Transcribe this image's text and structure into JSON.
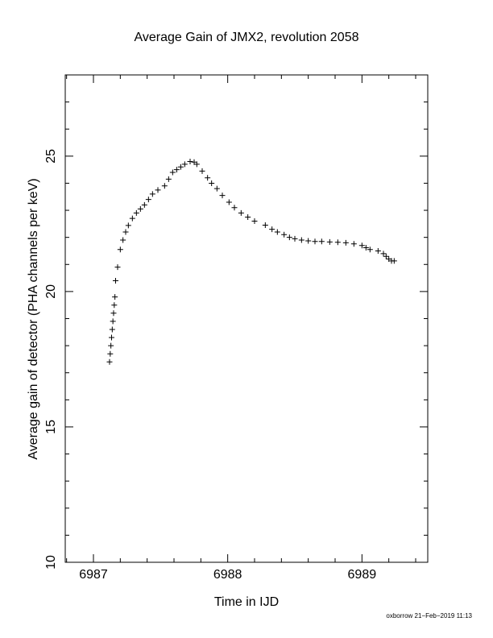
{
  "chart_data": {
    "type": "scatter",
    "title": "Average Gain of JMX2, revolution 2058",
    "x_label": "Time in IJD",
    "y_label": "Average gain of detector (PHA channels per keV)",
    "footer": "oxborrow 21−Feb−2019 11:13",
    "color": "#000000",
    "marker": "+",
    "xlim": [
      6986.79,
      6989.49
    ],
    "ylim": [
      10,
      28
    ],
    "xticks": [
      6987,
      6988,
      6989
    ],
    "yticks": [
      10,
      15,
      20,
      25
    ],
    "x_minor_ticks": [
      6986.8,
      6987.2,
      6987.4,
      6987.6,
      6987.8,
      6988.2,
      6988.4,
      6988.6,
      6988.8,
      6989.2,
      6989.4
    ],
    "y_minor_ticks": [
      11,
      12,
      13,
      14,
      16,
      17,
      18,
      19,
      21,
      22,
      23,
      24,
      26,
      27
    ],
    "x": [
      6987.12,
      6987.125,
      6987.13,
      6987.135,
      6987.14,
      6987.145,
      6987.15,
      6987.155,
      6987.16,
      6987.165,
      6987.18,
      6987.2,
      6987.22,
      6987.24,
      6987.26,
      6987.29,
      6987.32,
      6987.35,
      6987.38,
      6987.41,
      6987.44,
      6987.48,
      6987.53,
      6987.56,
      6987.59,
      6987.62,
      6987.65,
      6987.68,
      6987.72,
      6987.75,
      6987.77,
      6987.81,
      6987.85,
      6987.88,
      6987.92,
      6987.96,
      6988.01,
      6988.05,
      6988.1,
      6988.15,
      6988.2,
      6988.28,
      6988.33,
      6988.37,
      6988.42,
      6988.46,
      6988.5,
      6988.55,
      6988.6,
      6988.65,
      6988.7,
      6988.76,
      6988.82,
      6988.88,
      6988.94,
      6989.0,
      6989.03,
      6989.06,
      6989.12,
      6989.16,
      6989.18,
      6989.2,
      6989.22,
      6989.24
    ],
    "y": [
      17.4,
      17.7,
      18.0,
      18.3,
      18.6,
      18.9,
      19.2,
      19.5,
      19.8,
      20.4,
      20.9,
      21.55,
      21.9,
      22.2,
      22.44,
      22.7,
      22.9,
      23.05,
      23.2,
      23.4,
      23.6,
      23.75,
      23.9,
      24.15,
      24.4,
      24.5,
      24.6,
      24.7,
      24.8,
      24.78,
      24.7,
      24.45,
      24.2,
      24.0,
      23.8,
      23.55,
      23.3,
      23.1,
      22.9,
      22.75,
      22.6,
      22.45,
      22.3,
      22.2,
      22.1,
      22.0,
      21.95,
      21.9,
      21.87,
      21.85,
      21.85,
      21.83,
      21.82,
      21.8,
      21.76,
      21.7,
      21.62,
      21.55,
      21.5,
      21.4,
      21.3,
      21.2,
      21.13,
      21.13
    ]
  }
}
